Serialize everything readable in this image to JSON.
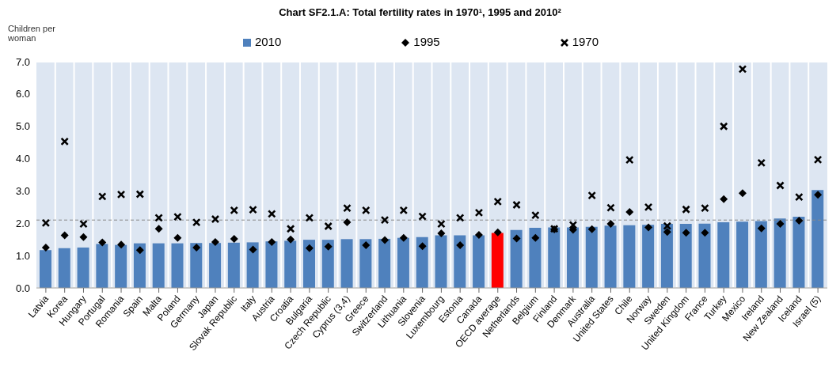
{
  "chart_data": {
    "type": "bar",
    "title": "Chart SF2.1.A: Total fertility rates in 1970¹, 1995 and 2010²",
    "ylabel": "Children per woman",
    "categories": [
      "Latvia",
      "Korea",
      "Hungary",
      "Portugal",
      "Romania",
      "Spain",
      "Malta",
      "Poland",
      "Germany",
      "Japan",
      "Slovak Republic",
      "Italy",
      "Austria",
      "Croatia",
      "Bulgaria",
      "Czech Republic",
      "Cyprus (3,4)",
      "Greece",
      "Switzerland",
      "Lithuania",
      "Slovenia",
      "Luxembourg",
      "Estonia",
      "Canada",
      "OECD average",
      "Netherlands",
      "Belgium",
      "Finland",
      "Denmark",
      "Australia",
      "United States",
      "Chile",
      "Norway",
      "Sweden",
      "United Kingdom",
      "France",
      "Turkey",
      "Mexico",
      "Ireland",
      "New Zealand",
      "Iceland",
      "Israel (5)"
    ],
    "series": [
      {
        "name": "2010",
        "color": "#4f81bd",
        "colors": [
          "#4f81bd",
          "#4f81bd",
          "#4f81bd",
          "#4f81bd",
          "#4f81bd",
          "#4f81bd",
          "#4f81bd",
          "#4f81bd",
          "#4f81bd",
          "#4f81bd",
          "#4f81bd",
          "#4f81bd",
          "#4f81bd",
          "#4f81bd",
          "#4f81bd",
          "#4f81bd",
          "#4f81bd",
          "#4f81bd",
          "#4f81bd",
          "#4f81bd",
          "#4f81bd",
          "#4f81bd",
          "#4f81bd",
          "#4f81bd",
          "#ff0000",
          "#4f81bd",
          "#4f81bd",
          "#4f81bd",
          "#4f81bd",
          "#4f81bd",
          "#4f81bd",
          "#4f81bd",
          "#4f81bd",
          "#4f81bd",
          "#4f81bd",
          "#4f81bd",
          "#4f81bd",
          "#4f81bd",
          "#4f81bd",
          "#4f81bd",
          "#4f81bd",
          "#4f81bd"
        ],
        "values": [
          1.17,
          1.23,
          1.25,
          1.36,
          1.33,
          1.38,
          1.38,
          1.38,
          1.39,
          1.39,
          1.4,
          1.41,
          1.44,
          1.46,
          1.49,
          1.49,
          1.51,
          1.51,
          1.52,
          1.55,
          1.57,
          1.63,
          1.63,
          1.63,
          1.7,
          1.79,
          1.86,
          1.87,
          1.87,
          1.89,
          1.93,
          1.94,
          1.95,
          1.98,
          1.98,
          1.99,
          2.03,
          2.05,
          2.07,
          2.15,
          2.2,
          3.03
        ]
      },
      {
        "name": "1995",
        "type": "scatter",
        "marker": "diamond",
        "color": "#000000",
        "values": [
          1.25,
          1.63,
          1.57,
          1.41,
          1.34,
          1.17,
          1.83,
          1.55,
          1.25,
          1.42,
          1.52,
          1.19,
          1.42,
          1.5,
          1.23,
          1.28,
          2.03,
          1.32,
          1.48,
          1.55,
          1.29,
          1.69,
          1.32,
          1.64,
          1.72,
          1.53,
          1.55,
          1.81,
          1.8,
          1.82,
          1.98,
          2.35,
          1.87,
          1.73,
          1.71,
          1.71,
          2.75,
          2.93,
          1.84,
          1.98,
          2.08,
          2.88
        ]
      },
      {
        "name": "1970",
        "type": "scatter",
        "marker": "cross",
        "color": "#000000",
        "values": [
          2.01,
          4.53,
          1.98,
          2.83,
          2.89,
          2.9,
          2.17,
          2.2,
          2.03,
          2.13,
          2.4,
          2.42,
          2.29,
          1.83,
          2.17,
          1.91,
          2.47,
          2.4,
          2.1,
          2.4,
          2.21,
          1.98,
          2.17,
          2.33,
          2.67,
          2.57,
          2.25,
          1.83,
          1.95,
          2.86,
          2.48,
          3.96,
          2.5,
          1.92,
          2.43,
          2.47,
          5.0,
          6.77,
          3.87,
          3.17,
          2.81,
          3.97
        ]
      }
    ],
    "ylim": [
      0,
      7
    ],
    "yticks": [
      {
        "value": 0,
        "label": "0.0"
      },
      {
        "value": 1,
        "label": "1.0"
      },
      {
        "value": 2,
        "label": "2.0"
      },
      {
        "value": 3,
        "label": "3.0"
      },
      {
        "value": 4,
        "label": "4.0"
      },
      {
        "value": 5,
        "label": "5.0"
      },
      {
        "value": 6,
        "label": "6.0"
      },
      {
        "value": 7,
        "label": "7.0"
      }
    ],
    "grid": true,
    "legend": "top",
    "ref_lines": [
      {
        "axis": "y",
        "value": 2.1,
        "color": "#888888",
        "line_style": "dashed"
      }
    ]
  }
}
